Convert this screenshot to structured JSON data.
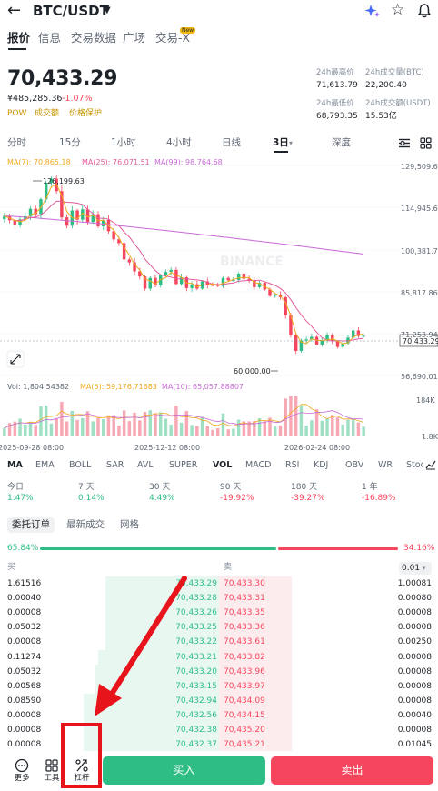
{
  "header": {
    "pair": "BTC/USDT"
  },
  "top_tabs": [
    "报价",
    "信息",
    "交易数据",
    "广场",
    "交易-X"
  ],
  "new_badge": "New",
  "price": {
    "last": "70,433.29",
    "cny": "¥485,285.36",
    "change": "-1.07%"
  },
  "tags": [
    "POW",
    "成交额",
    "价格保护"
  ],
  "stats": {
    "high_label": "24h最高价",
    "high": "71,613.79",
    "vol_btc_label": "24h成交量(BTC)",
    "vol_btc": "22,200.40",
    "low_label": "24h最低价",
    "low": "68,793.35",
    "vol_usdt_label": "24h成交额(USDT)",
    "vol_usdt": "15.53亿"
  },
  "intervals": [
    "分时",
    "15分",
    "1小时",
    "4小时",
    "日线",
    "3日",
    "深度"
  ],
  "chart": {
    "ma7": "MA(7): 70,865.18",
    "ma25": "MA(25): 76,071.51",
    "ma99": "MA(99): 98,764.68",
    "y_ticks": [
      "129,509.62",
      "114,945.69",
      "100,381.77",
      "85,817.86",
      "71,253.94",
      "56,690.01"
    ],
    "current_price_label": "70,433.29",
    "high_marker": "126,199.63",
    "low_marker": "60,000.00",
    "vol": "Vol: 1,804.54382",
    "vol_ma5": "MA(5): 59,176.71683",
    "vol_ma10": "MA(10): 65,057.88807",
    "vol_ticks": [
      "184K",
      "1.8K"
    ],
    "dates": [
      "2025-09-28 08:00",
      "2025-12-12 08:00",
      "2026-02-24 08:00"
    ],
    "watermark": "BINANCE"
  },
  "chart_data": {
    "type": "candlestick",
    "ylim": [
      56690.01,
      129509.62
    ],
    "close": [
      112000,
      110500,
      108800,
      110800,
      111900,
      114500,
      112600,
      117800,
      123500,
      124900,
      120600,
      111500,
      108600,
      113900,
      110700,
      114300,
      109900,
      112600,
      108400,
      110600,
      106700,
      103900,
      102600,
      96900,
      95900,
      92800,
      91000,
      86800,
      90500,
      87900,
      91400,
      92600,
      93300,
      88400,
      90700,
      87000,
      88300,
      86800,
      89300,
      88100,
      88000,
      87700,
      90500,
      89700,
      89800,
      92000,
      90200,
      89500,
      87300,
      88800,
      86500,
      84300,
      84600,
      83800,
      77600,
      70900,
      65200,
      68800,
      69200,
      70100,
      67400,
      68900,
      70700,
      68600,
      66600,
      67800,
      69800,
      72300,
      70400,
      70433
    ],
    "volume_units": "BTC",
    "ma7": 70865.18,
    "ma25": 76071.51,
    "ma99": 98764.68
  },
  "indicators": [
    "MA",
    "EMA",
    "BOLL",
    "SAR",
    "AVL",
    "SUPER",
    "VOL",
    "MACD",
    "RSI",
    "KDJ",
    "OBV",
    "WR",
    "Stoc"
  ],
  "performance": [
    {
      "label": "今日",
      "value": "1.47%"
    },
    {
      "label": "7 天",
      "value": "0.14%"
    },
    {
      "label": "30 天",
      "value": "4.49%"
    },
    {
      "label": "90 天",
      "value": "-19.92%"
    },
    {
      "label": "180 天",
      "value": "-39.27%"
    },
    {
      "label": "1 年",
      "value": "-16.89%"
    }
  ],
  "book_tabs": [
    "委托订单",
    "最新成交",
    "网格"
  ],
  "book": {
    "buy_ratio": "65.84%",
    "sell_ratio": "34.16%",
    "buy_label": "买",
    "sell_label": "卖",
    "precision": "0.01",
    "rows": [
      {
        "bq": "1.61516",
        "bp": "70,433.29",
        "sp": "70,433.30",
        "sq": "1.00081",
        "bd": 0.52,
        "sd": 0.33
      },
      {
        "bq": "0.00040",
        "bp": "70,433.28",
        "sp": "70,433.31",
        "sq": "0.00080",
        "bd": 0.52,
        "sd": 0.33
      },
      {
        "bq": "0.00008",
        "bp": "70,433.26",
        "sp": "70,433.35",
        "sq": "0.00008",
        "bd": 0.52,
        "sd": 0.33
      },
      {
        "bq": "0.05032",
        "bp": "70,433.25",
        "sp": "70,433.36",
        "sq": "0.00008",
        "bd": 0.52,
        "sd": 0.33
      },
      {
        "bq": "0.00008",
        "bp": "70,433.22",
        "sp": "70,433.61",
        "sq": "0.00250",
        "bd": 0.52,
        "sd": 0.33
      },
      {
        "bq": "0.11274",
        "bp": "70,433.21",
        "sp": "70,433.82",
        "sq": "0.00008",
        "bd": 0.55,
        "sd": 0.33
      },
      {
        "bq": "0.05032",
        "bp": "70,433.20",
        "sp": "70,433.96",
        "sq": "0.00008",
        "bd": 0.57,
        "sd": 0.33
      },
      {
        "bq": "0.00568",
        "bp": "70,433.15",
        "sp": "70,433.97",
        "sq": "0.00008",
        "bd": 0.57,
        "sd": 0.33
      },
      {
        "bq": "0.08590",
        "bp": "70,432.94",
        "sp": "70,434.09",
        "sq": "0.00008",
        "bd": 0.62,
        "sd": 0.33
      },
      {
        "bq": "0.00008",
        "bp": "70,432.56",
        "sp": "70,434.15",
        "sq": "0.00040",
        "bd": 0.62,
        "sd": 0.33
      },
      {
        "bq": "0.00008",
        "bp": "70,432.38",
        "sp": "70,435.20",
        "sq": "0.00008",
        "bd": 0.62,
        "sd": 0.33
      },
      {
        "bq": "0.00008",
        "bp": "70,432.37",
        "sp": "70,435.21",
        "sq": "0.01045",
        "bd": 0.62,
        "sd": 0.33
      }
    ]
  },
  "bottom": {
    "more": "更多",
    "tools": "工具",
    "leverage": "杠杆",
    "buy": "买入",
    "sell": "卖出"
  }
}
